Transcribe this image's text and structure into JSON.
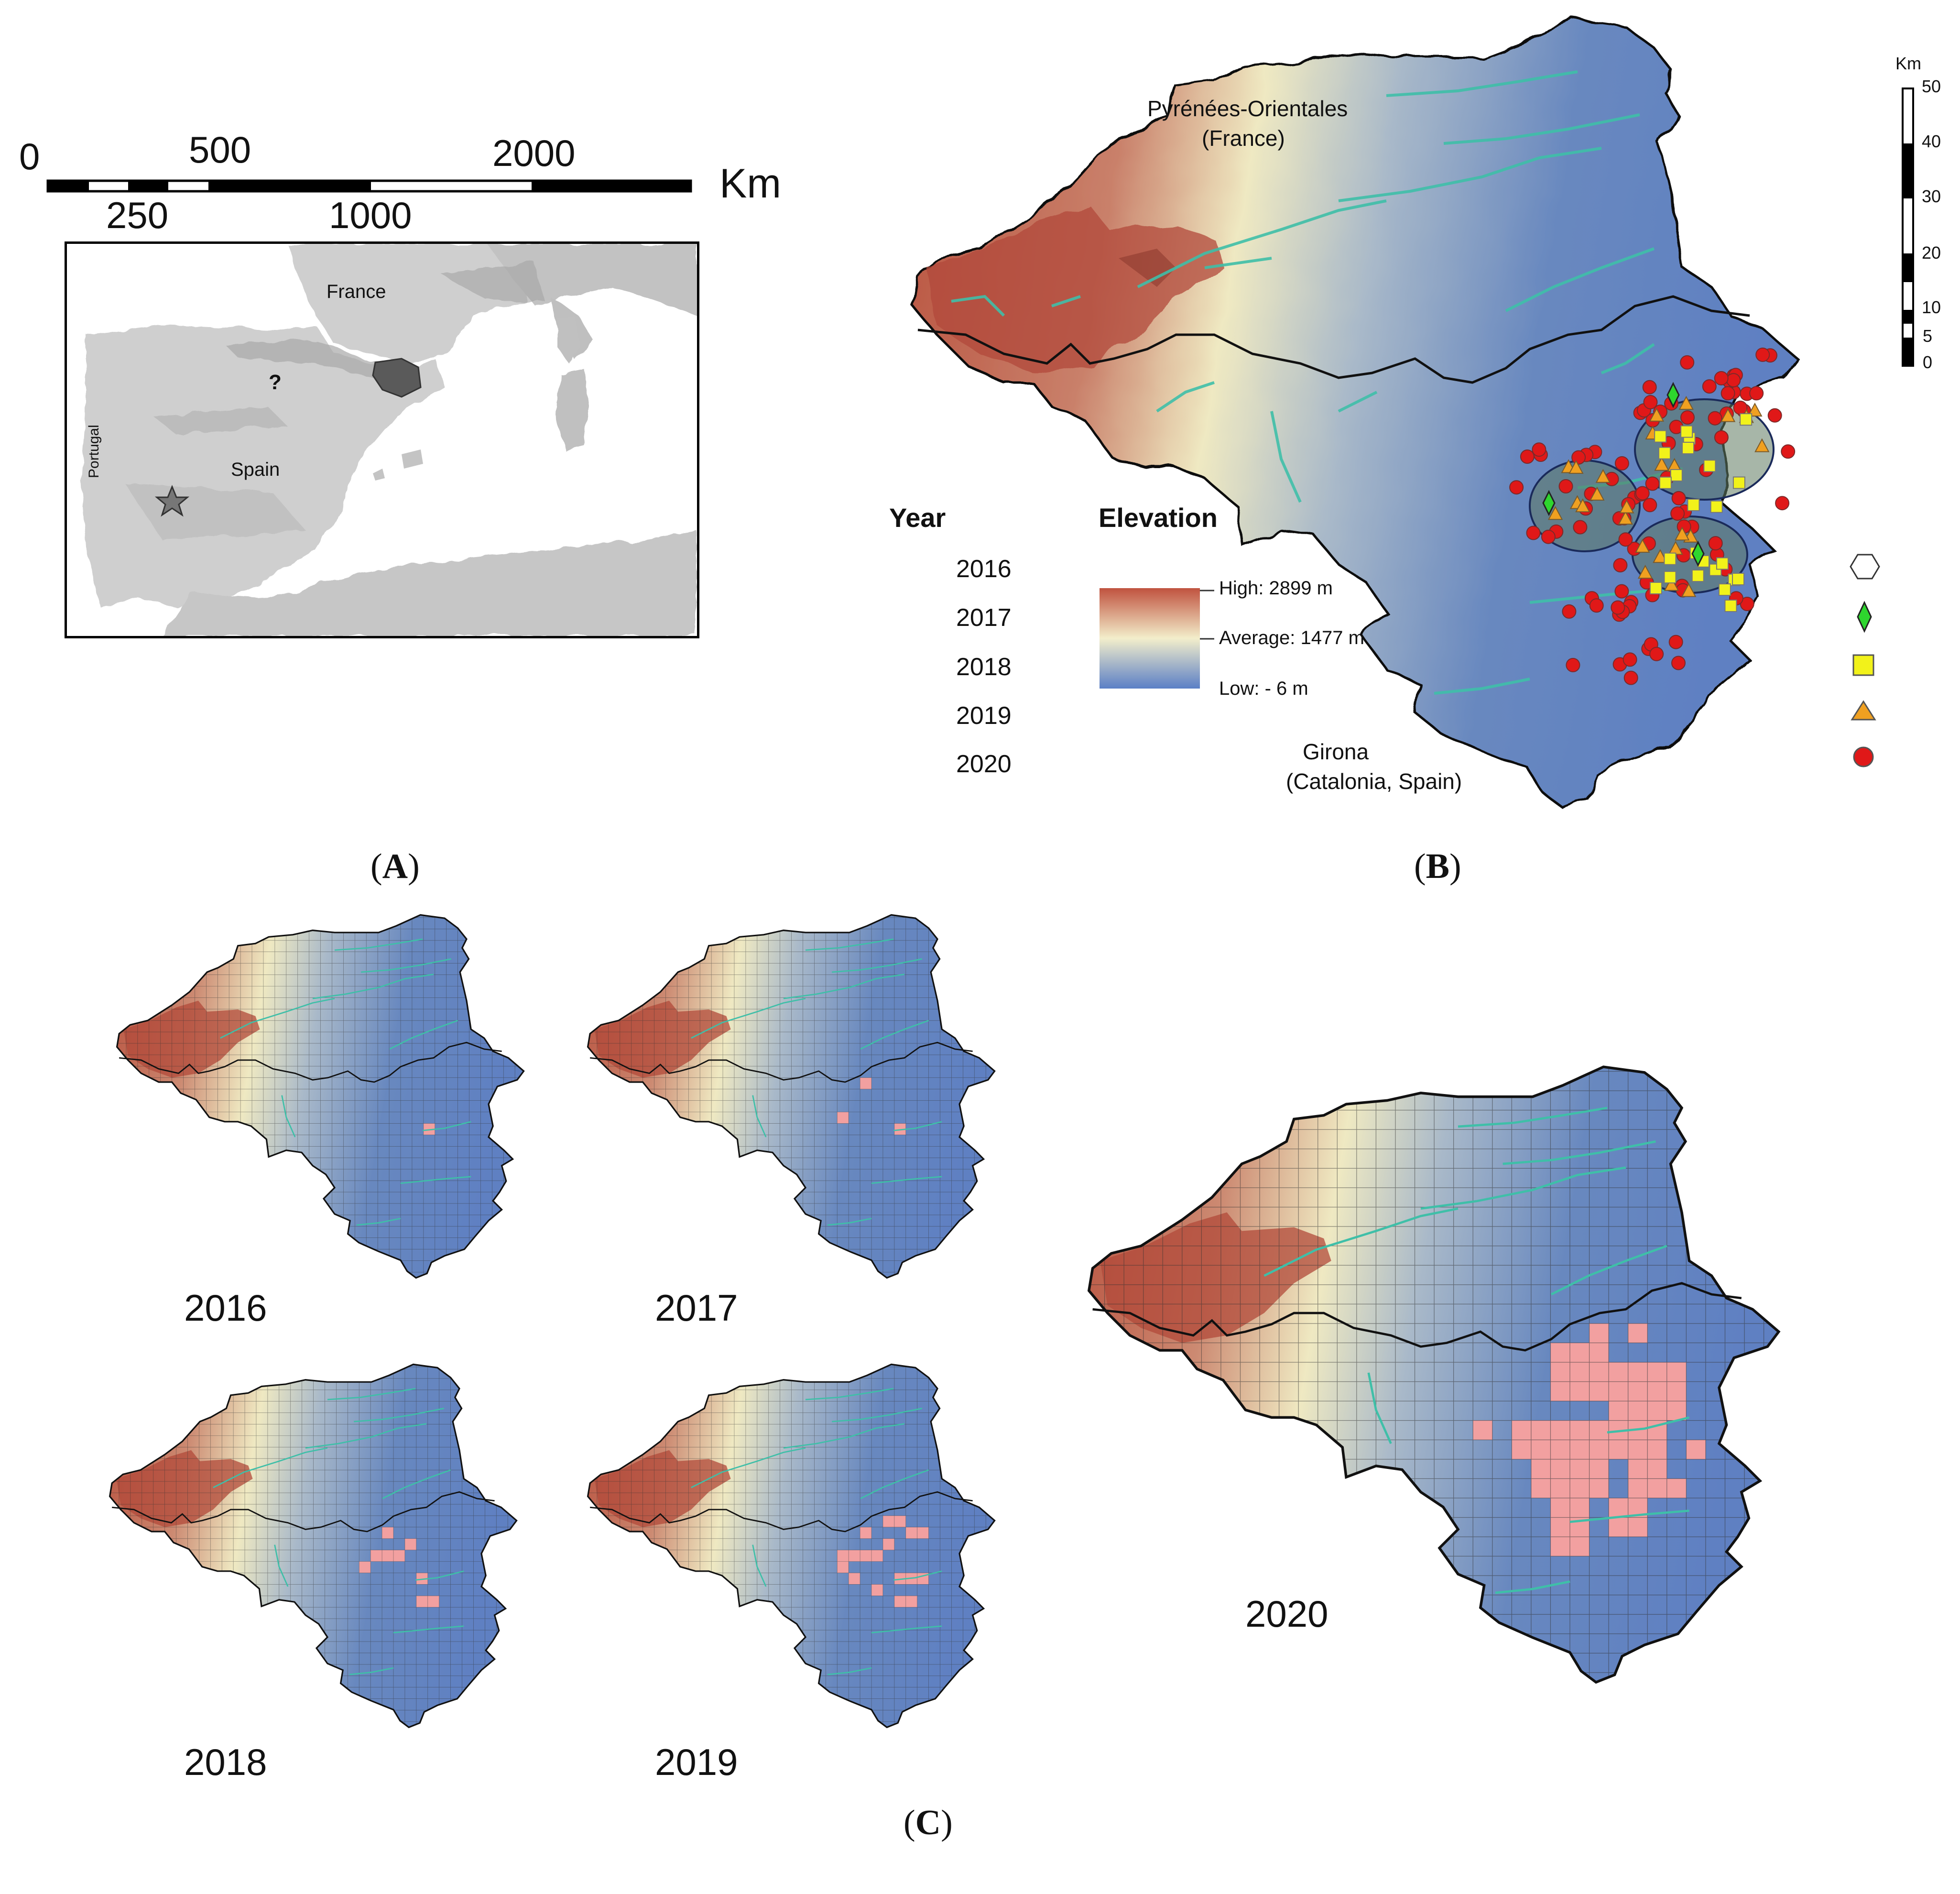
{
  "panelA": {
    "scale_unit": "Km",
    "scale_top_labels": [
      "0",
      "500",
      "2000"
    ],
    "scale_bottom_labels": [
      "250",
      "1000"
    ],
    "map_labels": {
      "france": "France",
      "spain": "Spain",
      "portugal": "Portugal",
      "question": "?"
    },
    "caption": "A"
  },
  "panelB": {
    "label_top": "Pyrénées-Orientales",
    "label_top_sub": "(France)",
    "label_bottom": "Girona",
    "label_bottom_sub": "(Catalonia, Spain)",
    "scale_unit": "Km",
    "scale_ticks": [
      "50",
      "40",
      "30",
      "20",
      "10",
      "5",
      "0"
    ],
    "legend_year_title": "Year",
    "legend_years": [
      "2016",
      "2017",
      "2018",
      "2019",
      "2020"
    ],
    "legend_elev_title": "Elevation",
    "elev_high": "High: 2899 m",
    "elev_avg": "Average:  1477 m",
    "elev_low": "Low: - 6 m",
    "colors": {
      "elev_high": "#b3503f",
      "elev_mid": "#f2edc6",
      "elev_low": "#5d7fc4",
      "rivers": "#3fbfa8",
      "y2017": "#2ed62e",
      "y2018": "#f2f21a",
      "y2019": "#f0a020",
      "y2020": "#e01818",
      "cells": "#f2a0a0"
    },
    "caption": "B"
  },
  "panelC": {
    "maps": [
      {
        "year": "2016",
        "cells": 1
      },
      {
        "year": "2017",
        "cells": 3
      },
      {
        "year": "2018",
        "cells": 9
      },
      {
        "year": "2019",
        "cells": 18
      },
      {
        "year": "2020",
        "cells": 52
      }
    ],
    "caption": "C"
  }
}
